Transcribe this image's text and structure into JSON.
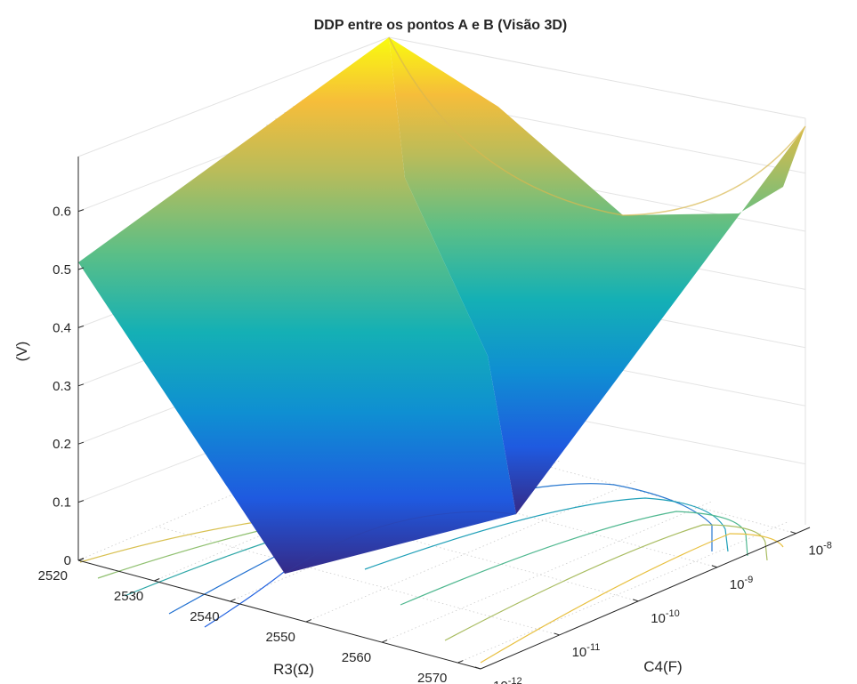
{
  "chart_data": {
    "type": "surface",
    "title": "DDP entre os pontos A e B (Visão 3D)",
    "xlabel": "R3(Ω)",
    "ylabel": "C4(F)",
    "zlabel": "(V)",
    "x_ticks": [
      "2520",
      "2530",
      "2540",
      "2550",
      "2560",
      "2570"
    ],
    "y_ticks": [
      {
        "base": "10",
        "exp": "-12"
      },
      {
        "base": "10",
        "exp": "-11"
      },
      {
        "base": "10",
        "exp": "-10"
      },
      {
        "base": "10",
        "exp": "-9"
      },
      {
        "base": "10",
        "exp": "-8"
      }
    ],
    "z_ticks": [
      "0",
      "0.1",
      "0.2",
      "0.3",
      "0.4",
      "0.5",
      "0.6"
    ],
    "xlim": [
      2520,
      2573
    ],
    "ylim": [
      "1e-12",
      "1.5e-8"
    ],
    "zlim": [
      0,
      0.6
    ],
    "y_scale": "log",
    "colormap": "parula",
    "grid": true,
    "contours_on_floor": true,
    "surface_corners": [
      {
        "R3": 2520,
        "C4": "1e-12",
        "V": 0.51
      },
      {
        "R3": 2570,
        "C4": "1e-12",
        "V": 0.36
      },
      {
        "R3": 2570,
        "C4": "1.5e-8",
        "V": 0.69
      },
      {
        "R3": 2520,
        "C4": "1.5e-8",
        "V": 0.77
      },
      {
        "R3": 2546,
        "C4": "1e-12",
        "V": 0.0
      },
      {
        "R3": 2548,
        "C4": "1.5e-8",
        "V": 0.59
      }
    ]
  }
}
